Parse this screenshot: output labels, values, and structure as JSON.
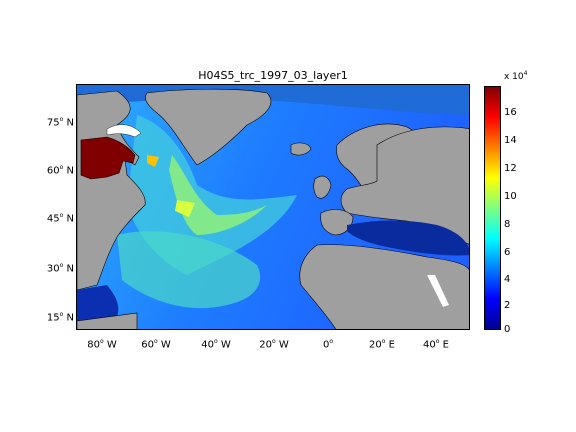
{
  "map": {
    "title": "H04S5_trc_1997_03_layer1",
    "lat_labels": [
      "75",
      "60",
      "45",
      "30",
      "15"
    ],
    "lat_suffix": "N",
    "lon_labels": [
      "80",
      "60",
      "40",
      "20",
      "0",
      "20",
      "40"
    ],
    "lon_suffixes": [
      "W",
      "W",
      "W",
      "W",
      "",
      "E",
      "E"
    ],
    "land_color": "#9f9f9f",
    "ocean_colormap": "jet"
  },
  "colorbar": {
    "multiplier_text": "x 10",
    "multiplier_exponent": "4",
    "ticks": [
      "16",
      "14",
      "12",
      "10",
      "8",
      "6",
      "4",
      "2",
      "0"
    ],
    "range": [
      0,
      17.5
    ]
  }
}
